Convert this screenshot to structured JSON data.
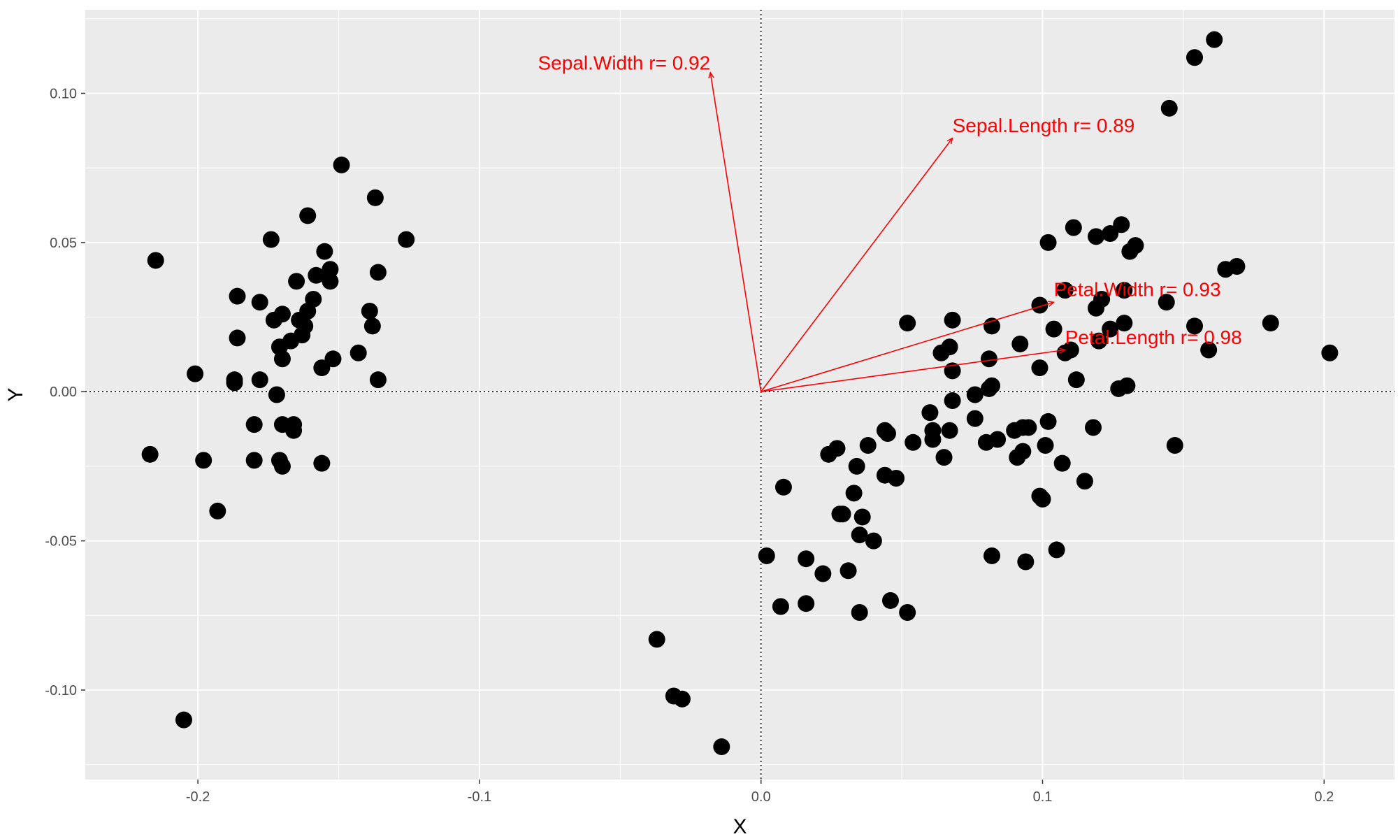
{
  "chart_data": {
    "type": "scatter",
    "title": "",
    "xlabel": "X",
    "ylabel": "Y",
    "xlim": [
      -0.24,
      0.225
    ],
    "ylim": [
      -0.13,
      0.128
    ],
    "grid": true,
    "legend": "none",
    "x_ticks": [
      -0.2,
      -0.1,
      0.0,
      0.1,
      0.2
    ],
    "x_tick_labels": [
      "-0.2",
      "-0.1",
      "0.0",
      "0.1",
      "0.2"
    ],
    "y_ticks": [
      -0.1,
      -0.05,
      0.0,
      0.05,
      0.1
    ],
    "y_tick_labels": [
      "-0.10",
      "-0.05",
      "0.00",
      "0.05",
      "0.10"
    ],
    "colors": {
      "panel_background": "#ebebeb",
      "grid_line": "#ffffff",
      "point": "#000000",
      "vector": "#ff0000",
      "reference_line": "#000000"
    },
    "reference_lines": {
      "x": 0.0,
      "y": 0.0,
      "style": "dotted"
    },
    "points": [
      {
        "x": -0.215,
        "y": 0.044
      },
      {
        "x": -0.201,
        "y": 0.006
      },
      {
        "x": -0.217,
        "y": -0.021
      },
      {
        "x": -0.198,
        "y": -0.023
      },
      {
        "x": -0.193,
        "y": -0.04
      },
      {
        "x": -0.205,
        "y": -0.11
      },
      {
        "x": -0.186,
        "y": 0.032
      },
      {
        "x": -0.186,
        "y": 0.018
      },
      {
        "x": -0.187,
        "y": 0.003
      },
      {
        "x": -0.187,
        "y": 0.004
      },
      {
        "x": -0.178,
        "y": 0.03
      },
      {
        "x": -0.178,
        "y": 0.004
      },
      {
        "x": -0.174,
        "y": 0.051
      },
      {
        "x": -0.173,
        "y": 0.024
      },
      {
        "x": -0.17,
        "y": 0.026
      },
      {
        "x": -0.171,
        "y": 0.015
      },
      {
        "x": -0.17,
        "y": 0.011
      },
      {
        "x": -0.172,
        "y": -0.001
      },
      {
        "x": -0.18,
        "y": -0.011
      },
      {
        "x": -0.17,
        "y": -0.011
      },
      {
        "x": -0.18,
        "y": -0.023
      },
      {
        "x": -0.171,
        "y": -0.023
      },
      {
        "x": -0.17,
        "y": -0.025
      },
      {
        "x": -0.166,
        "y": -0.011
      },
      {
        "x": -0.166,
        "y": -0.013
      },
      {
        "x": -0.167,
        "y": 0.017
      },
      {
        "x": -0.165,
        "y": 0.037
      },
      {
        "x": -0.164,
        "y": 0.024
      },
      {
        "x": -0.162,
        "y": 0.022
      },
      {
        "x": -0.163,
        "y": 0.019
      },
      {
        "x": -0.161,
        "y": 0.027
      },
      {
        "x": -0.159,
        "y": 0.031
      },
      {
        "x": -0.161,
        "y": 0.059
      },
      {
        "x": -0.158,
        "y": 0.039
      },
      {
        "x": -0.155,
        "y": 0.047
      },
      {
        "x": -0.153,
        "y": 0.041
      },
      {
        "x": -0.153,
        "y": 0.037
      },
      {
        "x": -0.156,
        "y": 0.008
      },
      {
        "x": -0.152,
        "y": 0.011
      },
      {
        "x": -0.156,
        "y": -0.024
      },
      {
        "x": -0.149,
        "y": 0.076
      },
      {
        "x": -0.143,
        "y": 0.013
      },
      {
        "x": -0.139,
        "y": 0.027
      },
      {
        "x": -0.138,
        "y": 0.022
      },
      {
        "x": -0.137,
        "y": 0.065
      },
      {
        "x": -0.136,
        "y": 0.04
      },
      {
        "x": -0.136,
        "y": 0.004
      },
      {
        "x": -0.126,
        "y": 0.051
      },
      {
        "x": -0.037,
        "y": -0.083
      },
      {
        "x": -0.031,
        "y": -0.102
      },
      {
        "x": -0.028,
        "y": -0.103
      },
      {
        "x": -0.014,
        "y": -0.119
      },
      {
        "x": 0.002,
        "y": -0.055
      },
      {
        "x": 0.007,
        "y": -0.072
      },
      {
        "x": 0.008,
        "y": -0.032
      },
      {
        "x": 0.016,
        "y": -0.056
      },
      {
        "x": 0.016,
        "y": -0.071
      },
      {
        "x": 0.022,
        "y": -0.061
      },
      {
        "x": 0.024,
        "y": -0.021
      },
      {
        "x": 0.027,
        "y": -0.019
      },
      {
        "x": 0.028,
        "y": -0.041
      },
      {
        "x": 0.029,
        "y": -0.041
      },
      {
        "x": 0.031,
        "y": -0.06
      },
      {
        "x": 0.033,
        "y": -0.034
      },
      {
        "x": 0.034,
        "y": -0.025
      },
      {
        "x": 0.035,
        "y": -0.048
      },
      {
        "x": 0.036,
        "y": -0.042
      },
      {
        "x": 0.035,
        "y": -0.074
      },
      {
        "x": 0.038,
        "y": -0.018
      },
      {
        "x": 0.04,
        "y": -0.05
      },
      {
        "x": 0.044,
        "y": -0.013
      },
      {
        "x": 0.045,
        "y": -0.014
      },
      {
        "x": 0.044,
        "y": -0.028
      },
      {
        "x": 0.048,
        "y": -0.029
      },
      {
        "x": 0.046,
        "y": -0.07
      },
      {
        "x": 0.052,
        "y": 0.023
      },
      {
        "x": 0.054,
        "y": -0.017
      },
      {
        "x": 0.052,
        "y": -0.074
      },
      {
        "x": 0.06,
        "y": -0.007
      },
      {
        "x": 0.061,
        "y": -0.013
      },
      {
        "x": 0.061,
        "y": -0.016
      },
      {
        "x": 0.064,
        "y": 0.013
      },
      {
        "x": 0.065,
        "y": -0.022
      },
      {
        "x": 0.067,
        "y": 0.015
      },
      {
        "x": 0.068,
        "y": 0.007
      },
      {
        "x": 0.068,
        "y": 0.024
      },
      {
        "x": 0.068,
        "y": -0.003
      },
      {
        "x": 0.067,
        "y": -0.013
      },
      {
        "x": 0.076,
        "y": -0.001
      },
      {
        "x": 0.076,
        "y": -0.009
      },
      {
        "x": 0.081,
        "y": 0.011
      },
      {
        "x": 0.08,
        "y": -0.017
      },
      {
        "x": 0.082,
        "y": 0.022
      },
      {
        "x": 0.082,
        "y": 0.002
      },
      {
        "x": 0.081,
        "y": 0.001
      },
      {
        "x": 0.084,
        "y": -0.016
      },
      {
        "x": 0.082,
        "y": -0.055
      },
      {
        "x": 0.09,
        "y": -0.013
      },
      {
        "x": 0.091,
        "y": -0.022
      },
      {
        "x": 0.092,
        "y": 0.016
      },
      {
        "x": 0.093,
        "y": -0.012
      },
      {
        "x": 0.095,
        "y": -0.012
      },
      {
        "x": 0.093,
        "y": -0.02
      },
      {
        "x": 0.094,
        "y": -0.057
      },
      {
        "x": 0.099,
        "y": -0.035
      },
      {
        "x": 0.099,
        "y": 0.008
      },
      {
        "x": 0.099,
        "y": 0.029
      },
      {
        "x": 0.1,
        "y": -0.036
      },
      {
        "x": 0.101,
        "y": -0.018
      },
      {
        "x": 0.102,
        "y": 0.05
      },
      {
        "x": 0.102,
        "y": -0.01
      },
      {
        "x": 0.104,
        "y": 0.021
      },
      {
        "x": 0.105,
        "y": -0.053
      },
      {
        "x": 0.107,
        "y": -0.024
      },
      {
        "x": 0.108,
        "y": 0.034
      },
      {
        "x": 0.108,
        "y": 0.013
      },
      {
        "x": 0.11,
        "y": 0.014
      },
      {
        "x": 0.111,
        "y": 0.055
      },
      {
        "x": 0.112,
        "y": 0.004
      },
      {
        "x": 0.115,
        "y": -0.03
      },
      {
        "x": 0.118,
        "y": -0.012
      },
      {
        "x": 0.119,
        "y": 0.052
      },
      {
        "x": 0.119,
        "y": 0.028
      },
      {
        "x": 0.12,
        "y": 0.017
      },
      {
        "x": 0.121,
        "y": 0.031
      },
      {
        "x": 0.124,
        "y": 0.053
      },
      {
        "x": 0.124,
        "y": 0.021
      },
      {
        "x": 0.127,
        "y": 0.001
      },
      {
        "x": 0.128,
        "y": 0.056
      },
      {
        "x": 0.129,
        "y": 0.034
      },
      {
        "x": 0.129,
        "y": 0.023
      },
      {
        "x": 0.13,
        "y": 0.002
      },
      {
        "x": 0.131,
        "y": 0.047
      },
      {
        "x": 0.133,
        "y": 0.049
      },
      {
        "x": 0.144,
        "y": 0.03
      },
      {
        "x": 0.145,
        "y": 0.095
      },
      {
        "x": 0.147,
        "y": -0.018
      },
      {
        "x": 0.154,
        "y": 0.022
      },
      {
        "x": 0.154,
        "y": 0.112
      },
      {
        "x": 0.159,
        "y": 0.014
      },
      {
        "x": 0.161,
        "y": 0.118
      },
      {
        "x": 0.165,
        "y": 0.041
      },
      {
        "x": 0.169,
        "y": 0.042
      },
      {
        "x": 0.181,
        "y": 0.023
      },
      {
        "x": 0.202,
        "y": 0.013
      }
    ],
    "vectors": [
      {
        "label": "Sepal.Length r= 0.89",
        "x": 0.068,
        "y": 0.085,
        "label_x": 0.068,
        "label_y": 0.087,
        "anchor": "start"
      },
      {
        "label": "Sepal.Width r= 0.92",
        "x": -0.018,
        "y": 0.107,
        "label_x": -0.018,
        "label_y": 0.108,
        "anchor": "end"
      },
      {
        "label": "Petal.Length r= 0.98",
        "x": 0.108,
        "y": 0.014,
        "label_x": 0.108,
        "label_y": 0.016,
        "anchor": "start"
      },
      {
        "label": "Petal.Width r= 0.93",
        "x": 0.104,
        "y": 0.03,
        "label_x": 0.104,
        "label_y": 0.032,
        "anchor": "start"
      }
    ]
  }
}
